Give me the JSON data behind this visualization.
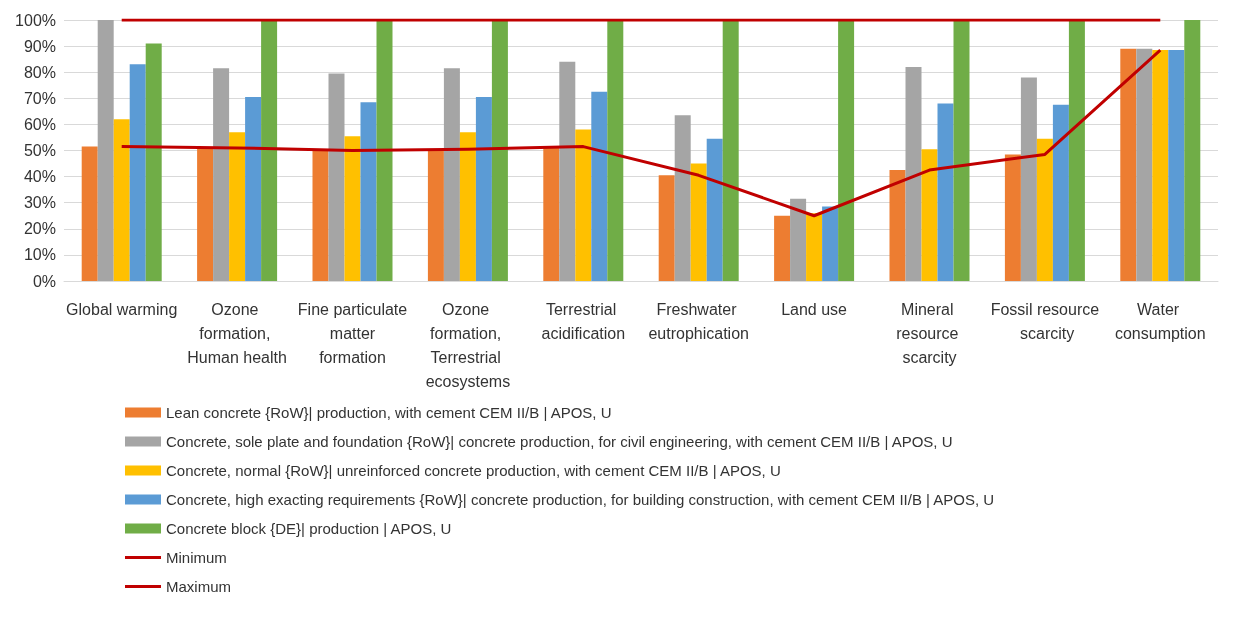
{
  "chart_data": {
    "type": "bar",
    "categories": [
      "Global warming",
      "Ozone formation, Human health",
      "Fine particulate matter formation",
      "Ozone formation, Terrestrial ecosystems",
      "Terrestrial acidification",
      "Freshwater eutrophication",
      "Land use",
      "Mineral resource scarcity",
      "Fossil resource scarcity",
      "Water consumption"
    ],
    "series": [
      {
        "name": "Lean concrete {RoW}| production, with cement CEM II/B | APOS, U",
        "color": "#ed7d31",
        "values": [
          51.5,
          51,
          50,
          50.5,
          51.5,
          40.5,
          25,
          42.5,
          48.5,
          89
        ]
      },
      {
        "name": "Concrete, sole plate and foundation {RoW}| concrete production, for civil engineering, with cement CEM II/B | APOS, U",
        "color": "#a5a5a5",
        "values": [
          100,
          81.5,
          79.5,
          81.5,
          84,
          63.5,
          31.5,
          82,
          78,
          89
        ]
      },
      {
        "name": "Concrete, normal {RoW}| unreinforced concrete production, with cement CEM II/B | APOS, U",
        "color": "#ffc000",
        "values": [
          62,
          57,
          55.5,
          57,
          58,
          45,
          26,
          50.5,
          54.5,
          88.5
        ]
      },
      {
        "name": "Concrete, high exacting requirements {RoW}| concrete production, for building construction, with cement CEM II/B | APOS, U",
        "color": "#5b9bd5",
        "values": [
          83,
          70.5,
          68.5,
          70.5,
          72.5,
          54.5,
          28.5,
          68,
          67.5,
          88.5
        ]
      },
      {
        "name": "Concrete block {DE}| production | APOS, U",
        "color": "#70ad47",
        "values": [
          91,
          100,
          100,
          100,
          100,
          100,
          100,
          100,
          100,
          100
        ]
      },
      {
        "name": "Minimum",
        "type": "line",
        "color": "#c00000",
        "values": [
          51.5,
          51,
          50,
          50.5,
          51.5,
          40.5,
          25,
          42.5,
          48.5,
          88.5
        ]
      },
      {
        "name": "Maximum",
        "type": "line",
        "color": "#c00000",
        "values": [
          100,
          100,
          100,
          100,
          100,
          100,
          100,
          100,
          100,
          100
        ]
      }
    ],
    "ylim": [
      0,
      100
    ],
    "yticks": [
      {
        "value": 0,
        "label": "0%"
      },
      {
        "value": 10,
        "label": "10%"
      },
      {
        "value": 20,
        "label": "20%"
      },
      {
        "value": 30,
        "label": "30%"
      },
      {
        "value": 40,
        "label": "40%"
      },
      {
        "value": 50,
        "label": "50%"
      },
      {
        "value": 60,
        "label": "60%"
      },
      {
        "value": 70,
        "label": "70%"
      },
      {
        "value": 80,
        "label": "80%"
      },
      {
        "value": 90,
        "label": "90%"
      },
      {
        "value": 100,
        "label": "100%"
      }
    ],
    "grid": "y",
    "legend": "bottom",
    "marker": "none"
  }
}
